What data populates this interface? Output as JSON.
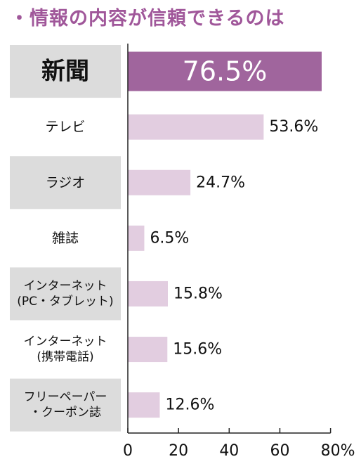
{
  "chart_data": {
    "type": "bar",
    "orientation": "horizontal",
    "title": "・情報の内容が信頼できるのは",
    "categories": [
      [
        "新聞"
      ],
      [
        "テレビ"
      ],
      [
        "ラジオ"
      ],
      [
        "雑誌"
      ],
      [
        "インターネット",
        "(PC・タブレット)"
      ],
      [
        "インターネット",
        "(携帯電話)"
      ],
      [
        "フリーペーパー",
        "・クーポン誌"
      ]
    ],
    "values": [
      76.5,
      53.6,
      24.7,
      6.5,
      15.8,
      15.6,
      12.6
    ],
    "value_labels": [
      "76.5%",
      "53.6%",
      "24.7%",
      "6.5%",
      "15.8%",
      "15.6%",
      "12.6%"
    ],
    "highlighted_index": 0,
    "xlim": [
      0,
      80
    ],
    "x_ticks": [
      "0",
      "20",
      "40",
      "60",
      "80%"
    ],
    "grid": false,
    "colors": {
      "highlight_bar": "#a0659d",
      "bar": "#e2cde0",
      "title": "#a0579a",
      "label_box": "#dcdcdc",
      "axis": "#222222"
    }
  }
}
